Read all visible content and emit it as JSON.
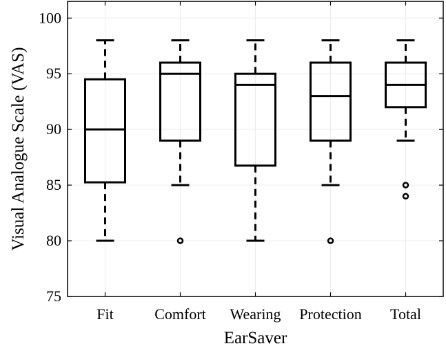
{
  "chart_data": {
    "type": "box",
    "xlabel": "EarSaver",
    "ylabel": "Visual Analogue Scale (VAS)",
    "ylim": [
      75,
      101.5
    ],
    "yticks": [
      75,
      80,
      85,
      90,
      95,
      100
    ],
    "grid": true,
    "categories": [
      "Fit",
      "Comfort",
      "Wearing",
      "Protection",
      "Total"
    ],
    "boxes": [
      {
        "category": "Fit",
        "whisker_low": 80,
        "q1": 85.25,
        "median": 90,
        "q3": 94.5,
        "whisker_high": 98,
        "outliers": []
      },
      {
        "category": "Comfort",
        "whisker_low": 85,
        "q1": 89,
        "median": 95,
        "q3": 96,
        "whisker_high": 98,
        "outliers": [
          80
        ]
      },
      {
        "category": "Wearing",
        "whisker_low": 80,
        "q1": 86.75,
        "median": 94,
        "q3": 95,
        "whisker_high": 98,
        "outliers": []
      },
      {
        "category": "Protection",
        "whisker_low": 85,
        "q1": 89,
        "median": 93,
        "q3": 96,
        "whisker_high": 98,
        "outliers": [
          80
        ]
      },
      {
        "category": "Total",
        "whisker_low": 89,
        "q1": 92,
        "median": 94,
        "q3": 96,
        "whisker_high": 98,
        "outliers": [
          85,
          84
        ]
      }
    ]
  }
}
